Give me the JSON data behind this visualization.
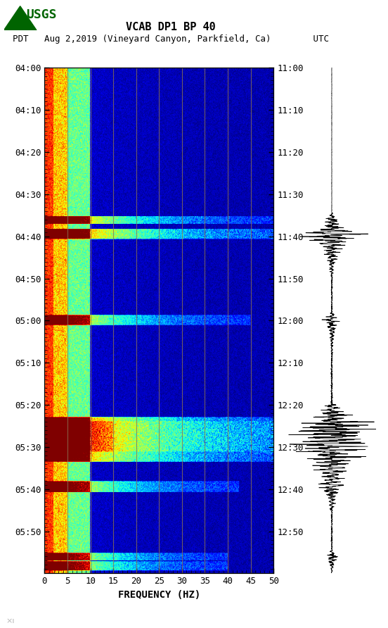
{
  "title_line1": "VCAB DP1 BP 40",
  "title_line2": "PDT   Aug 2,2019 (Vineyard Canyon, Parkfield, Ca)        UTC",
  "xlabel": "FREQUENCY (HZ)",
  "freq_min": 0,
  "freq_max": 50,
  "left_time_ticks": [
    "04:00",
    "04:10",
    "04:20",
    "04:30",
    "04:40",
    "04:50",
    "05:00",
    "05:10",
    "05:20",
    "05:30",
    "05:40",
    "05:50"
  ],
  "right_time_ticks": [
    "11:00",
    "11:10",
    "11:20",
    "11:30",
    "11:40",
    "11:50",
    "12:00",
    "12:10",
    "12:20",
    "12:30",
    "12:40",
    "12:50"
  ],
  "freq_ticks": [
    0,
    5,
    10,
    15,
    20,
    25,
    30,
    35,
    40,
    45,
    50
  ],
  "background_color": "#ffffff",
  "vertical_lines_color": "#8B7355",
  "vertical_lines_x": [
    5,
    10,
    15,
    20,
    25,
    30,
    35,
    40,
    45
  ],
  "figsize": [
    5.52,
    8.92
  ],
  "dpi": 100,
  "colormap": "jet",
  "usgs_color": "#006400"
}
